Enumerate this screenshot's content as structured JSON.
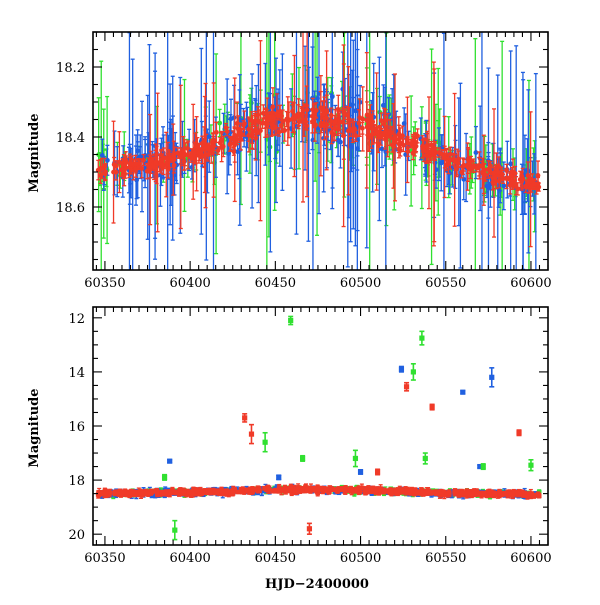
{
  "chart_data": [
    {
      "type": "scatter",
      "title": "",
      "xlabel": "",
      "ylabel": "Magnitude",
      "xlim": [
        60343,
        60610
      ],
      "ylim": [
        18.78,
        18.1
      ],
      "y_inverted": true,
      "xticks": [
        60350,
        60400,
        60450,
        60500,
        60550,
        60600
      ],
      "yticks": [
        18.2,
        18.4,
        18.6
      ],
      "grid": false,
      "legend": "none",
      "series": [
        {
          "color": "#2060e0",
          "marker": "circle",
          "error_bars": true
        },
        {
          "color": "#30e030",
          "marker": "circle",
          "error_bars": true
        },
        {
          "color": "#f03a28",
          "marker": "circle",
          "error_bars": true
        }
      ],
      "trend": {
        "x": [
          60345,
          60375,
          60400,
          60425,
          60445,
          60460,
          60480,
          60500,
          60520,
          60540,
          60560,
          60580,
          60605
        ],
        "y": [
          18.5,
          18.48,
          18.45,
          18.4,
          18.36,
          18.34,
          18.35,
          18.37,
          18.4,
          18.44,
          18.48,
          18.51,
          18.53
        ]
      }
    },
    {
      "type": "scatter",
      "title": "",
      "xlabel": "HJD−2400000",
      "ylabel": "Magnitude",
      "xlim": [
        60343,
        60610
      ],
      "ylim": [
        20.4,
        11.6
      ],
      "y_inverted": true,
      "xticks": [
        60350,
        60400,
        60450,
        60500,
        60550,
        60600
      ],
      "yticks": [
        12,
        14,
        16,
        18,
        20
      ],
      "grid": false,
      "legend": "none",
      "series": [
        {
          "color": "#2060e0",
          "marker": "square",
          "error_bars": true,
          "outliers": [
            {
              "x": 60388,
              "y": 17.3,
              "err": 0.05
            },
            {
              "x": 60452,
              "y": 17.9,
              "err": 0.08
            },
            {
              "x": 60500,
              "y": 17.7,
              "err": 0.08
            },
            {
              "x": 60524,
              "y": 13.9,
              "err": 0.1
            },
            {
              "x": 60560,
              "y": 14.75,
              "err": 0.05
            },
            {
              "x": 60577,
              "y": 14.2,
              "err": 0.35
            },
            {
              "x": 60570,
              "y": 17.5,
              "err": 0.05
            }
          ]
        },
        {
          "color": "#30e030",
          "marker": "square",
          "error_bars": true,
          "outliers": [
            {
              "x": 60391,
              "y": 19.85,
              "err": 0.35
            },
            {
              "x": 60459,
              "y": 12.1,
              "err": 0.15
            },
            {
              "x": 60444,
              "y": 16.6,
              "err": 0.35
            },
            {
              "x": 60466,
              "y": 17.2,
              "err": 0.1
            },
            {
              "x": 60497,
              "y": 17.2,
              "err": 0.3
            },
            {
              "x": 60531,
              "y": 14.0,
              "err": 0.3
            },
            {
              "x": 60536,
              "y": 12.75,
              "err": 0.25
            },
            {
              "x": 60538,
              "y": 17.2,
              "err": 0.2
            },
            {
              "x": 60572,
              "y": 17.5,
              "err": 0.1
            },
            {
              "x": 60600,
              "y": 17.45,
              "err": 0.2
            },
            {
              "x": 60385,
              "y": 17.9,
              "err": 0.1
            }
          ]
        },
        {
          "color": "#f03a28",
          "marker": "square",
          "error_bars": true,
          "outliers": [
            {
              "x": 60432,
              "y": 15.7,
              "err": 0.15
            },
            {
              "x": 60436,
              "y": 16.3,
              "err": 0.35
            },
            {
              "x": 60470,
              "y": 19.8,
              "err": 0.2
            },
            {
              "x": 60527,
              "y": 14.55,
              "err": 0.15
            },
            {
              "x": 60542,
              "y": 15.3,
              "err": 0.1
            },
            {
              "x": 60593,
              "y": 16.25,
              "err": 0.1
            },
            {
              "x": 60510,
              "y": 17.7,
              "err": 0.1
            }
          ]
        }
      ],
      "baseline": {
        "x": [
          60345,
          60400,
          60460,
          60500,
          60550,
          60605
        ],
        "y": [
          18.5,
          18.45,
          18.35,
          18.37,
          18.48,
          18.53
        ]
      }
    }
  ]
}
